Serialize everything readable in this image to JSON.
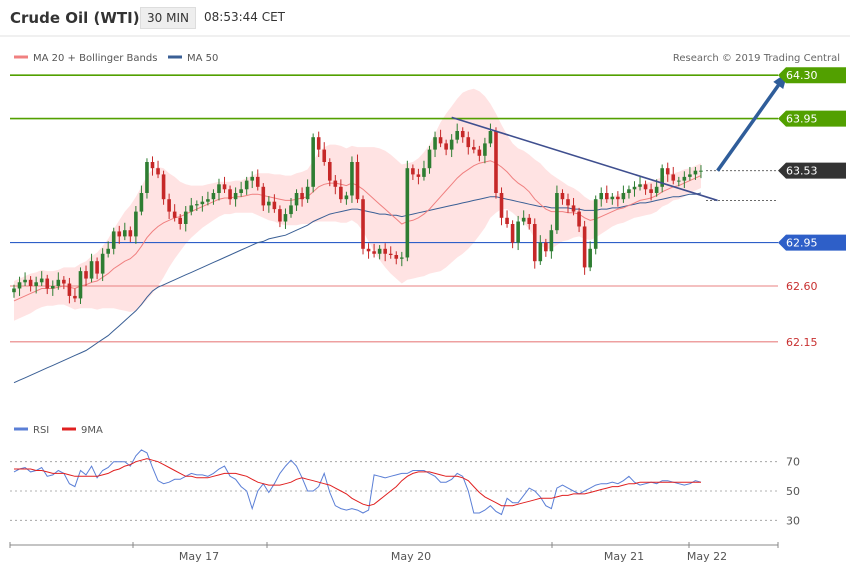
{
  "header": {
    "title": "Crude Oil (WTI)",
    "timeframe": "30 MIN",
    "time": "08:53:44 CET"
  },
  "legend": {
    "ma20_label": "MA 20 + Bollinger Bands",
    "ma50_label": "MA 50",
    "credit": "Research © 2019 Trading Central",
    "ma20_color": "#f08080",
    "ma50_color": "#3a5f95"
  },
  "rsi_legend": {
    "rsi_label": "RSI",
    "ma9_label": "9MA",
    "rsi_color": "#5b7fd6",
    "ma9_color": "#e02020"
  },
  "colors": {
    "up": "#2e7d32",
    "down": "#c62828",
    "resistance": "#52a000",
    "pivot": "#2e5fc8",
    "support": "#e88080",
    "last": "#333333",
    "arrow": "#2f5d9a",
    "trendline": "#3f4f8f",
    "band_fill": "#ffd9d9"
  },
  "chart_data": [
    {
      "type": "candlestick",
      "title": "Crude Oil (WTI)",
      "timeframe": "30 MIN",
      "ylim": [
        61.6,
        64.6
      ],
      "x_labels": [
        "May 17",
        "May 20",
        "May 21",
        "May 22"
      ],
      "levels": [
        {
          "value": 64.3,
          "label": "64.30",
          "kind": "resistance"
        },
        {
          "value": 63.95,
          "label": "63.95",
          "kind": "resistance"
        },
        {
          "value": 63.53,
          "label": "63.53",
          "kind": "last"
        },
        {
          "value": 62.95,
          "label": "62.95",
          "kind": "pivot"
        },
        {
          "value": 62.6,
          "label": "62.60",
          "kind": "support"
        },
        {
          "value": 62.15,
          "label": "62.15",
          "kind": "support"
        }
      ],
      "closes": [
        62.58,
        62.63,
        62.65,
        62.6,
        62.63,
        62.66,
        62.58,
        62.6,
        62.65,
        62.62,
        62.52,
        62.5,
        62.72,
        62.66,
        62.8,
        62.7,
        62.86,
        62.9,
        63.04,
        63.0,
        63.05,
        63.0,
        63.2,
        63.35,
        63.6,
        63.55,
        63.5,
        63.3,
        63.2,
        63.15,
        63.1,
        63.2,
        63.25,
        63.26,
        63.28,
        63.3,
        63.35,
        63.42,
        63.38,
        63.3,
        63.35,
        63.38,
        63.45,
        63.48,
        63.4,
        63.25,
        63.28,
        63.22,
        63.12,
        63.18,
        63.25,
        63.35,
        63.3,
        63.4,
        63.8,
        63.7,
        63.6,
        63.45,
        63.4,
        63.3,
        63.33,
        63.6,
        63.3,
        62.9,
        62.88,
        62.86,
        62.9,
        62.86,
        62.85,
        62.82,
        62.83,
        63.55,
        63.5,
        63.48,
        63.55,
        63.7,
        63.8,
        63.75,
        63.7,
        63.78,
        63.85,
        63.8,
        63.72,
        63.7,
        63.65,
        63.75,
        63.85,
        63.35,
        63.15,
        63.1,
        62.95,
        63.12,
        63.15,
        63.1,
        62.8,
        62.95,
        62.88,
        63.05,
        63.35,
        63.3,
        63.25,
        63.2,
        63.08,
        62.75,
        62.9,
        63.3,
        63.35,
        63.3,
        63.32,
        63.3,
        63.35,
        63.38,
        63.4,
        63.42,
        63.38,
        63.35,
        63.4,
        63.55,
        63.5,
        63.45,
        63.45,
        63.48,
        63.5,
        63.53,
        63.53
      ],
      "ma20": [
        62.48,
        62.5,
        62.52,
        62.54,
        62.56,
        62.58,
        62.58,
        62.58,
        62.59,
        62.6,
        62.59,
        62.58,
        62.6,
        62.61,
        62.63,
        62.64,
        62.67,
        62.7,
        62.74,
        62.77,
        62.8,
        62.82,
        62.86,
        62.92,
        62.99,
        63.04,
        63.08,
        63.11,
        63.13,
        63.15,
        63.16,
        63.18,
        63.2,
        63.22,
        63.24,
        63.26,
        63.28,
        63.3,
        63.31,
        63.31,
        63.32,
        63.32,
        63.33,
        63.34,
        63.34,
        63.33,
        63.32,
        63.31,
        63.3,
        63.29,
        63.29,
        63.3,
        63.31,
        63.32,
        63.36,
        63.4,
        63.42,
        63.43,
        63.43,
        63.42,
        63.41,
        63.43,
        63.41,
        63.38,
        63.34,
        63.3,
        63.26,
        63.22,
        63.18,
        63.14,
        63.1,
        63.12,
        63.13,
        63.15,
        63.18,
        63.22,
        63.27,
        63.32,
        63.37,
        63.42,
        63.47,
        63.51,
        63.54,
        63.57,
        63.59,
        63.6,
        63.61,
        63.59,
        63.56,
        63.52,
        63.47,
        63.43,
        63.4,
        63.36,
        63.3,
        63.26,
        63.22,
        63.2,
        63.2,
        63.2,
        63.19,
        63.19,
        63.18,
        63.15,
        63.13,
        63.14,
        63.16,
        63.18,
        63.2,
        63.22,
        63.23,
        63.25,
        63.27,
        63.29,
        63.3,
        63.31,
        63.33,
        63.36,
        63.38,
        63.4,
        63.41,
        63.43,
        63.45,
        63.47,
        63.49
      ],
      "bb_width": [
        0.16,
        0.16,
        0.16,
        0.16,
        0.15,
        0.15,
        0.14,
        0.14,
        0.14,
        0.15,
        0.16,
        0.17,
        0.18,
        0.19,
        0.21,
        0.23,
        0.25,
        0.28,
        0.32,
        0.36,
        0.4,
        0.43,
        0.46,
        0.48,
        0.5,
        0.5,
        0.48,
        0.44,
        0.38,
        0.33,
        0.28,
        0.24,
        0.21,
        0.19,
        0.17,
        0.16,
        0.15,
        0.14,
        0.13,
        0.13,
        0.13,
        0.13,
        0.14,
        0.15,
        0.17,
        0.18,
        0.19,
        0.19,
        0.2,
        0.2,
        0.2,
        0.21,
        0.21,
        0.22,
        0.25,
        0.28,
        0.3,
        0.31,
        0.31,
        0.31,
        0.3,
        0.3,
        0.31,
        0.34,
        0.38,
        0.42,
        0.45,
        0.47,
        0.48,
        0.48,
        0.48,
        0.47,
        0.47,
        0.48,
        0.5,
        0.52,
        0.56,
        0.6,
        0.62,
        0.63,
        0.64,
        0.65,
        0.64,
        0.62,
        0.58,
        0.53,
        0.46,
        0.4,
        0.34,
        0.3,
        0.28,
        0.28,
        0.29,
        0.3,
        0.32,
        0.33,
        0.32,
        0.3,
        0.27,
        0.24,
        0.22,
        0.2,
        0.18,
        0.17,
        0.16,
        0.15,
        0.14,
        0.13,
        0.12,
        0.12,
        0.12,
        0.12,
        0.12,
        0.13,
        0.13,
        0.13,
        0.13,
        0.12,
        0.12,
        0.11,
        0.11,
        0.11,
        0.1,
        0.1,
        0.1
      ],
      "ma50": [
        61.82,
        61.84,
        61.86,
        61.88,
        61.9,
        61.92,
        61.94,
        61.96,
        61.98,
        62.0,
        62.02,
        62.04,
        62.06,
        62.08,
        62.11,
        62.14,
        62.17,
        62.2,
        62.24,
        62.28,
        62.32,
        62.36,
        62.4,
        62.45,
        62.51,
        62.56,
        62.59,
        62.61,
        62.63,
        62.65,
        62.67,
        62.69,
        62.71,
        62.73,
        62.75,
        62.77,
        62.79,
        62.81,
        62.83,
        62.85,
        62.87,
        62.89,
        62.91,
        62.93,
        62.95,
        62.96,
        62.98,
        62.99,
        63.0,
        63.01,
        63.03,
        63.05,
        63.07,
        63.09,
        63.12,
        63.14,
        63.16,
        63.18,
        63.19,
        63.2,
        63.21,
        63.22,
        63.22,
        63.21,
        63.2,
        63.19,
        63.18,
        63.18,
        63.17,
        63.17,
        63.16,
        63.17,
        63.18,
        63.19,
        63.2,
        63.21,
        63.22,
        63.23,
        63.24,
        63.25,
        63.26,
        63.27,
        63.28,
        63.29,
        63.3,
        63.31,
        63.32,
        63.32,
        63.31,
        63.3,
        63.29,
        63.28,
        63.27,
        63.26,
        63.25,
        63.24,
        63.24,
        63.23,
        63.23,
        63.23,
        63.23,
        63.22,
        63.22,
        63.21,
        63.21,
        63.21,
        63.22,
        63.22,
        63.23,
        63.23,
        63.24,
        63.25,
        63.26,
        63.27,
        63.27,
        63.28,
        63.29,
        63.3,
        63.31,
        63.32,
        63.32,
        63.33,
        63.34,
        63.34,
        63.35
      ],
      "trendline": [
        [
          79,
          63.96
        ],
        [
          127,
          63.29
        ]
      ],
      "arrow": [
        [
          127,
          63.53
        ],
        [
          140,
          64.3
        ]
      ]
    },
    {
      "type": "line",
      "title": "RSI",
      "ylim": [
        20,
        80
      ],
      "ticks": [
        "70",
        "50",
        "30"
      ],
      "tick_values": [
        70,
        50,
        30
      ],
      "rsi": [
        63,
        65,
        66,
        63,
        64,
        66,
        60,
        61,
        64,
        62,
        55,
        53,
        64,
        61,
        67,
        59,
        64,
        66,
        70,
        70,
        70,
        67,
        74,
        78,
        76,
        66,
        57,
        55,
        56,
        58,
        58,
        60,
        62,
        61,
        61,
        60,
        62,
        65,
        67,
        60,
        58,
        53,
        50,
        38,
        50,
        55,
        49,
        55,
        62,
        67,
        71,
        67,
        59,
        50,
        50,
        53,
        62,
        49,
        40,
        38,
        37,
        38,
        37,
        35,
        37,
        61,
        60,
        59,
        60,
        61,
        62,
        62,
        64,
        64,
        64,
        62,
        60,
        56,
        56,
        58,
        62,
        60,
        50,
        35,
        35,
        37,
        40,
        36,
        34,
        45,
        42,
        42,
        47,
        52,
        50,
        46,
        40,
        38,
        52,
        54,
        52,
        50,
        48,
        50,
        52,
        54,
        55,
        55,
        56,
        55,
        57,
        60,
        56,
        54,
        55,
        56,
        55,
        57,
        57,
        56,
        55,
        54,
        55,
        57,
        56
      ],
      "ma9": [
        65,
        65,
        65,
        65,
        64,
        64,
        63,
        62,
        62,
        62,
        61,
        60,
        60,
        60,
        60,
        60,
        61,
        62,
        64,
        65,
        67,
        68,
        70,
        71,
        72,
        71,
        70,
        68,
        66,
        64,
        62,
        60,
        60,
        59,
        59,
        59,
        60,
        61,
        62,
        62,
        62,
        61,
        60,
        58,
        56,
        55,
        54,
        54,
        54,
        55,
        56,
        58,
        59,
        58,
        57,
        56,
        55,
        54,
        52,
        50,
        48,
        45,
        43,
        41,
        40,
        41,
        44,
        47,
        50,
        53,
        57,
        60,
        62,
        63,
        63,
        63,
        62,
        61,
        60,
        60,
        60,
        59,
        57,
        53,
        49,
        46,
        44,
        42,
        40,
        40,
        40,
        41,
        42,
        43,
        44,
        45,
        45,
        45,
        46,
        47,
        47,
        48,
        48,
        48,
        49,
        50,
        51,
        52,
        53,
        53,
        54,
        55,
        55,
        56,
        56,
        56,
        56,
        56,
        56,
        56,
        56,
        56,
        56,
        56,
        56
      ]
    }
  ]
}
